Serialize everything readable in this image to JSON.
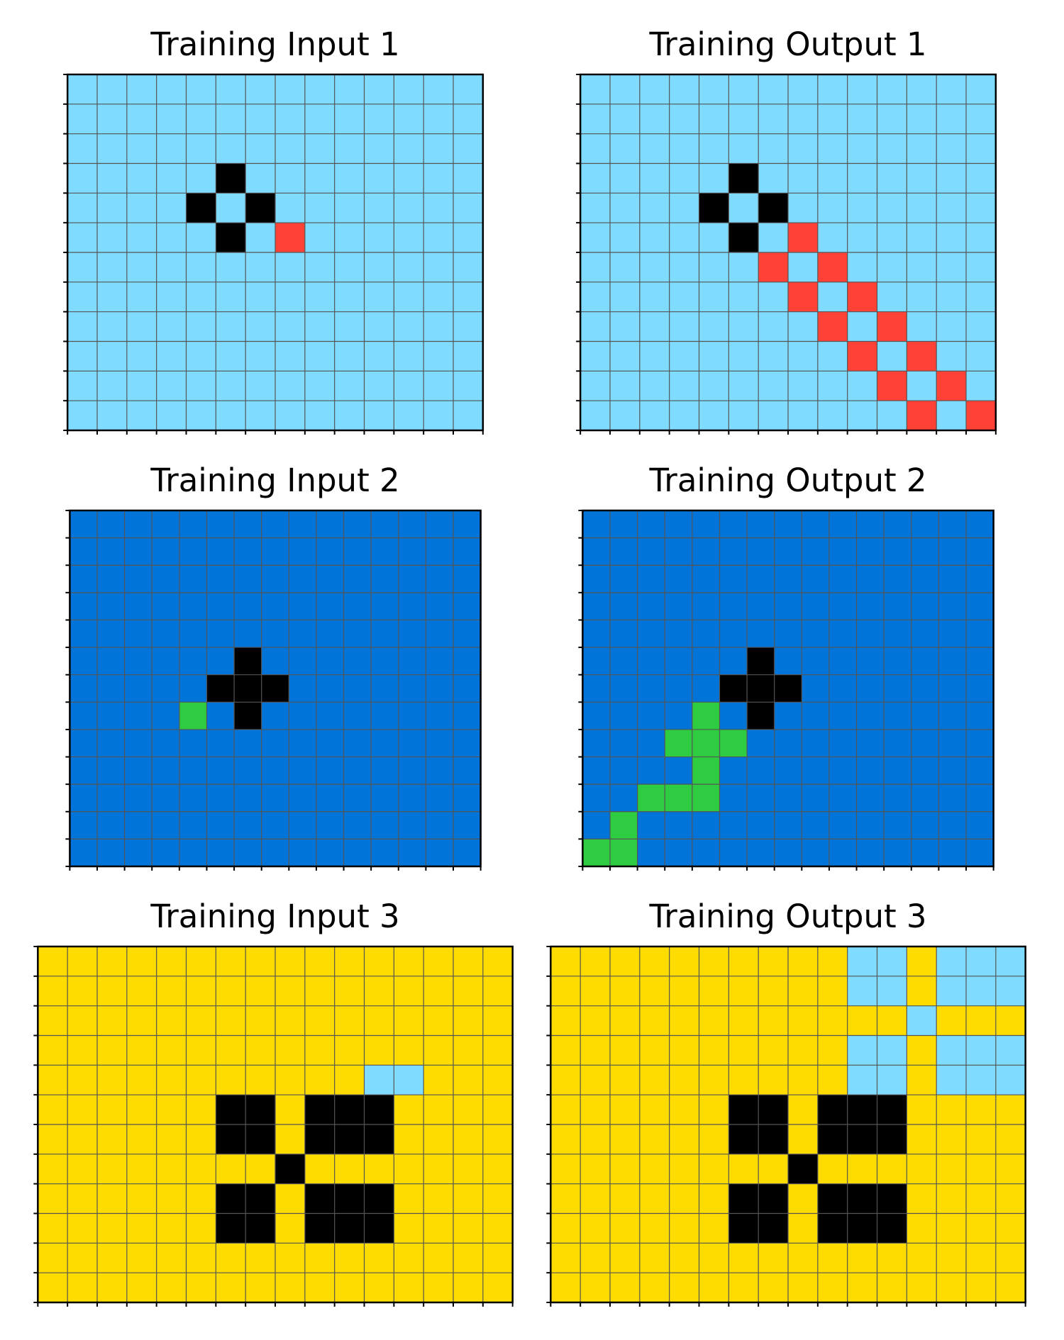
{
  "colors": {
    "0": "#000000",
    "1": "#0074D9",
    "2": "#FF4136",
    "3": "#2ECC40",
    "4": "#FFDC00",
    "8": "#7FDBFF",
    "gridline": "#555555",
    "frame": "#000000"
  },
  "panels": [
    {
      "title": "Training Input 1",
      "grid": [
        "88888888888888",
        "88888888888888",
        "88888888888888",
        "88888088888888",
        "88880808888888",
        "88888082888888",
        "88888888888888",
        "88888888888888",
        "88888888888888",
        "88888888888888",
        "88888888888888",
        "88888888888888"
      ]
    },
    {
      "title": "Training Output 1",
      "grid": [
        "88888888888888",
        "88888888888888",
        "88888888888888",
        "88888088888888",
        "88880808888888",
        "88888082888888",
        "88888828288888",
        "88888882828888",
        "88888888282888",
        "88888888828288",
        "88888888882828",
        "88888888888282"
      ]
    },
    {
      "title": "Training Input 2",
      "grid": [
        "111111111111111",
        "111111111111111",
        "111111111111111",
        "111111111111111",
        "111111111111111",
        "111111011111111",
        "111110001111111",
        "111131011111111",
        "111111111111111",
        "111111111111111",
        "111111111111111",
        "111111111111111",
        "111111111111111"
      ]
    },
    {
      "title": "Training Output 2",
      "grid": [
        "111111111111111",
        "111111111111111",
        "111111111111111",
        "111111111111111",
        "111111111111111",
        "111111011111111",
        "111110001111111",
        "111131011111111",
        "111333111111111",
        "111131111111111",
        "113331111111111",
        "131111111111111",
        "331111111111111"
      ]
    },
    {
      "title": "Training Input 3",
      "grid": [
        "4444444444444444",
        "4444444444444444",
        "4444444444444444",
        "4444444444444444",
        "4444444444488444",
        "4444440040004444",
        "4444440040004444",
        "4444444404444444",
        "4444440040004444",
        "4444440040004444",
        "4444444444444444",
        "4444444444444444"
      ]
    },
    {
      "title": "Training Output 3",
      "grid": [
        "4444444444884888",
        "4444444444884888",
        "4444444444448444",
        "4444444444884888",
        "4444444444884888",
        "4444440040004444",
        "4444440040004444",
        "4444444404444444",
        "4444440040004444",
        "4444440040004444",
        "4444444444444444",
        "4444444444444444"
      ]
    }
  ]
}
